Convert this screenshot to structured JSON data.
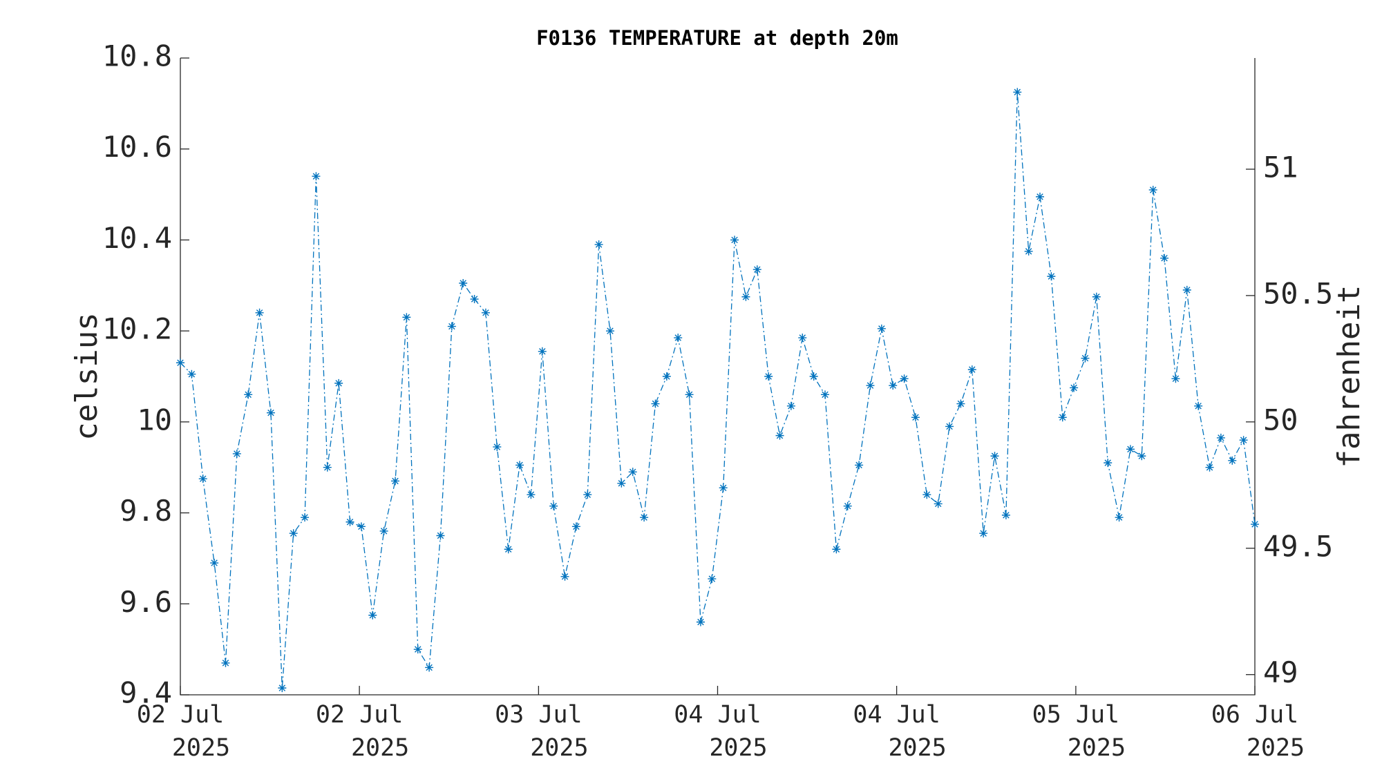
{
  "chart_data": {
    "type": "line",
    "title": "F0136 TEMPERATURE at depth 20m",
    "ylabel": "celsius",
    "y2label": "fahrenheit",
    "x": [
      0,
      1,
      2,
      3,
      4,
      5,
      6,
      7,
      8,
      9,
      10,
      11,
      12,
      13,
      14,
      15,
      16,
      17,
      18,
      19,
      20,
      21,
      22,
      23,
      24,
      25,
      26,
      27,
      28,
      29,
      30,
      31,
      32,
      33,
      34,
      35,
      36,
      37,
      38,
      39,
      40,
      41,
      42,
      43,
      44,
      45,
      46,
      47,
      48,
      49,
      50,
      51,
      52,
      53,
      54,
      55,
      56,
      57,
      58,
      59,
      60,
      61,
      62,
      63,
      64,
      65,
      66,
      67,
      68,
      69,
      70,
      71,
      72,
      73,
      74,
      75,
      76,
      77,
      78,
      79,
      80,
      81,
      82,
      83,
      84,
      85,
      86,
      87,
      88,
      89,
      90,
      91,
      92,
      93,
      94,
      95
    ],
    "series": [
      {
        "color": "#0072bd",
        "values": [
          10.13,
          10.105,
          9.875,
          9.69,
          9.47,
          9.93,
          10.06,
          10.24,
          10.02,
          9.415,
          9.755,
          9.79,
          10.54,
          9.9,
          10.085,
          9.78,
          9.77,
          9.575,
          9.76,
          9.87,
          10.23,
          9.5,
          9.46,
          9.75,
          10.21,
          10.305,
          10.27,
          10.24,
          9.945,
          9.72,
          9.905,
          9.84,
          10.155,
          9.815,
          9.66,
          9.77,
          9.84,
          10.39,
          10.2,
          9.865,
          9.89,
          9.79,
          10.04,
          10.1,
          10.185,
          10.06,
          9.56,
          9.655,
          9.855,
          10.4,
          10.275,
          10.335,
          10.1,
          9.97,
          10.035,
          10.185,
          10.1,
          10.06,
          9.72,
          9.815,
          9.905,
          10.08,
          10.205,
          10.08,
          10.095,
          10.01,
          9.84,
          9.82,
          9.99,
          10.04,
          10.115,
          9.755,
          9.925,
          9.795,
          10.725,
          10.375,
          10.495,
          10.32,
          10.01,
          10.075,
          10.14,
          10.275,
          9.91,
          9.79,
          9.94,
          9.925,
          10.51,
          10.36,
          10.095,
          10.29,
          10.035,
          9.9,
          9.965,
          9.915,
          9.96,
          9.775
        ]
      }
    ],
    "xlim": [
      0,
      95
    ],
    "xticks": [
      {
        "value": 0,
        "label": "02 Jul",
        "year": "2025"
      },
      {
        "value": 15.83,
        "label": "02 Jul",
        "year": "2025"
      },
      {
        "value": 31.67,
        "label": "03 Jul",
        "year": "2025"
      },
      {
        "value": 47.5,
        "label": "04 Jul",
        "year": "2025"
      },
      {
        "value": 63.33,
        "label": "04 Jul",
        "year": "2025"
      },
      {
        "value": 79.17,
        "label": "05 Jul",
        "year": "2025"
      },
      {
        "value": 95,
        "label": "06 Jul",
        "year": "2025"
      }
    ],
    "ylim": [
      9.4,
      10.8
    ],
    "yticks": [
      9.4,
      9.6,
      9.8,
      10,
      10.2,
      10.4,
      10.6,
      10.8
    ],
    "y2lim": [
      48.92,
      51.44
    ],
    "y2ticks": [
      49,
      49.5,
      50,
      50.5,
      51
    ]
  }
}
